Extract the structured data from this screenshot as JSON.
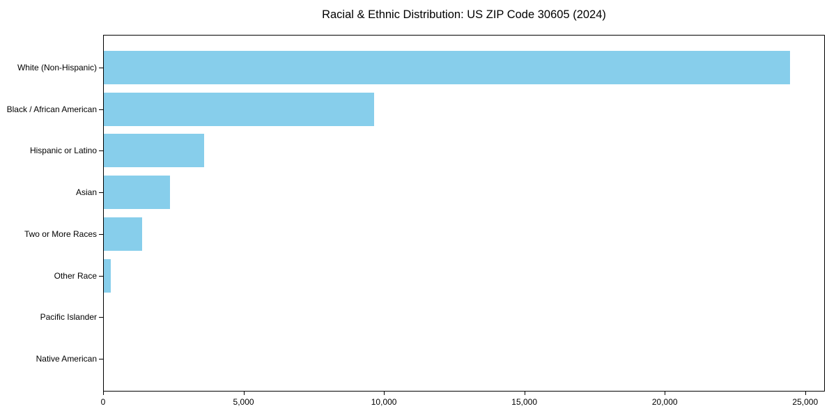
{
  "page": {
    "background_color": "#ffffff"
  },
  "chart_data": {
    "type": "bar",
    "orientation": "horizontal",
    "title": "Racial & Ethnic Distribution: US ZIP Code 30605 (2024)",
    "categories": [
      "White (Non-Hispanic)",
      "Black / African American",
      "Hispanic or Latino",
      "Asian",
      "Two or More Races",
      "Other Race",
      "Pacific Islander",
      "Native American"
    ],
    "values": [
      24470,
      9640,
      3590,
      2350,
      1360,
      250,
      0,
      0
    ],
    "xlabel": "",
    "ylabel": "",
    "xlim": [
      0,
      25700
    ],
    "xticks": [
      {
        "value": 0,
        "label": "0"
      },
      {
        "value": 5000,
        "label": "5,000"
      },
      {
        "value": 10000,
        "label": "10,000"
      },
      {
        "value": 15000,
        "label": "15,000"
      },
      {
        "value": 20000,
        "label": "20,000"
      },
      {
        "value": 25000,
        "label": "25,000"
      }
    ],
    "bar_color": "#87CEEB",
    "axis_color": "#000000",
    "grid": false,
    "legend": false,
    "bar_height_fraction": 0.8
  }
}
